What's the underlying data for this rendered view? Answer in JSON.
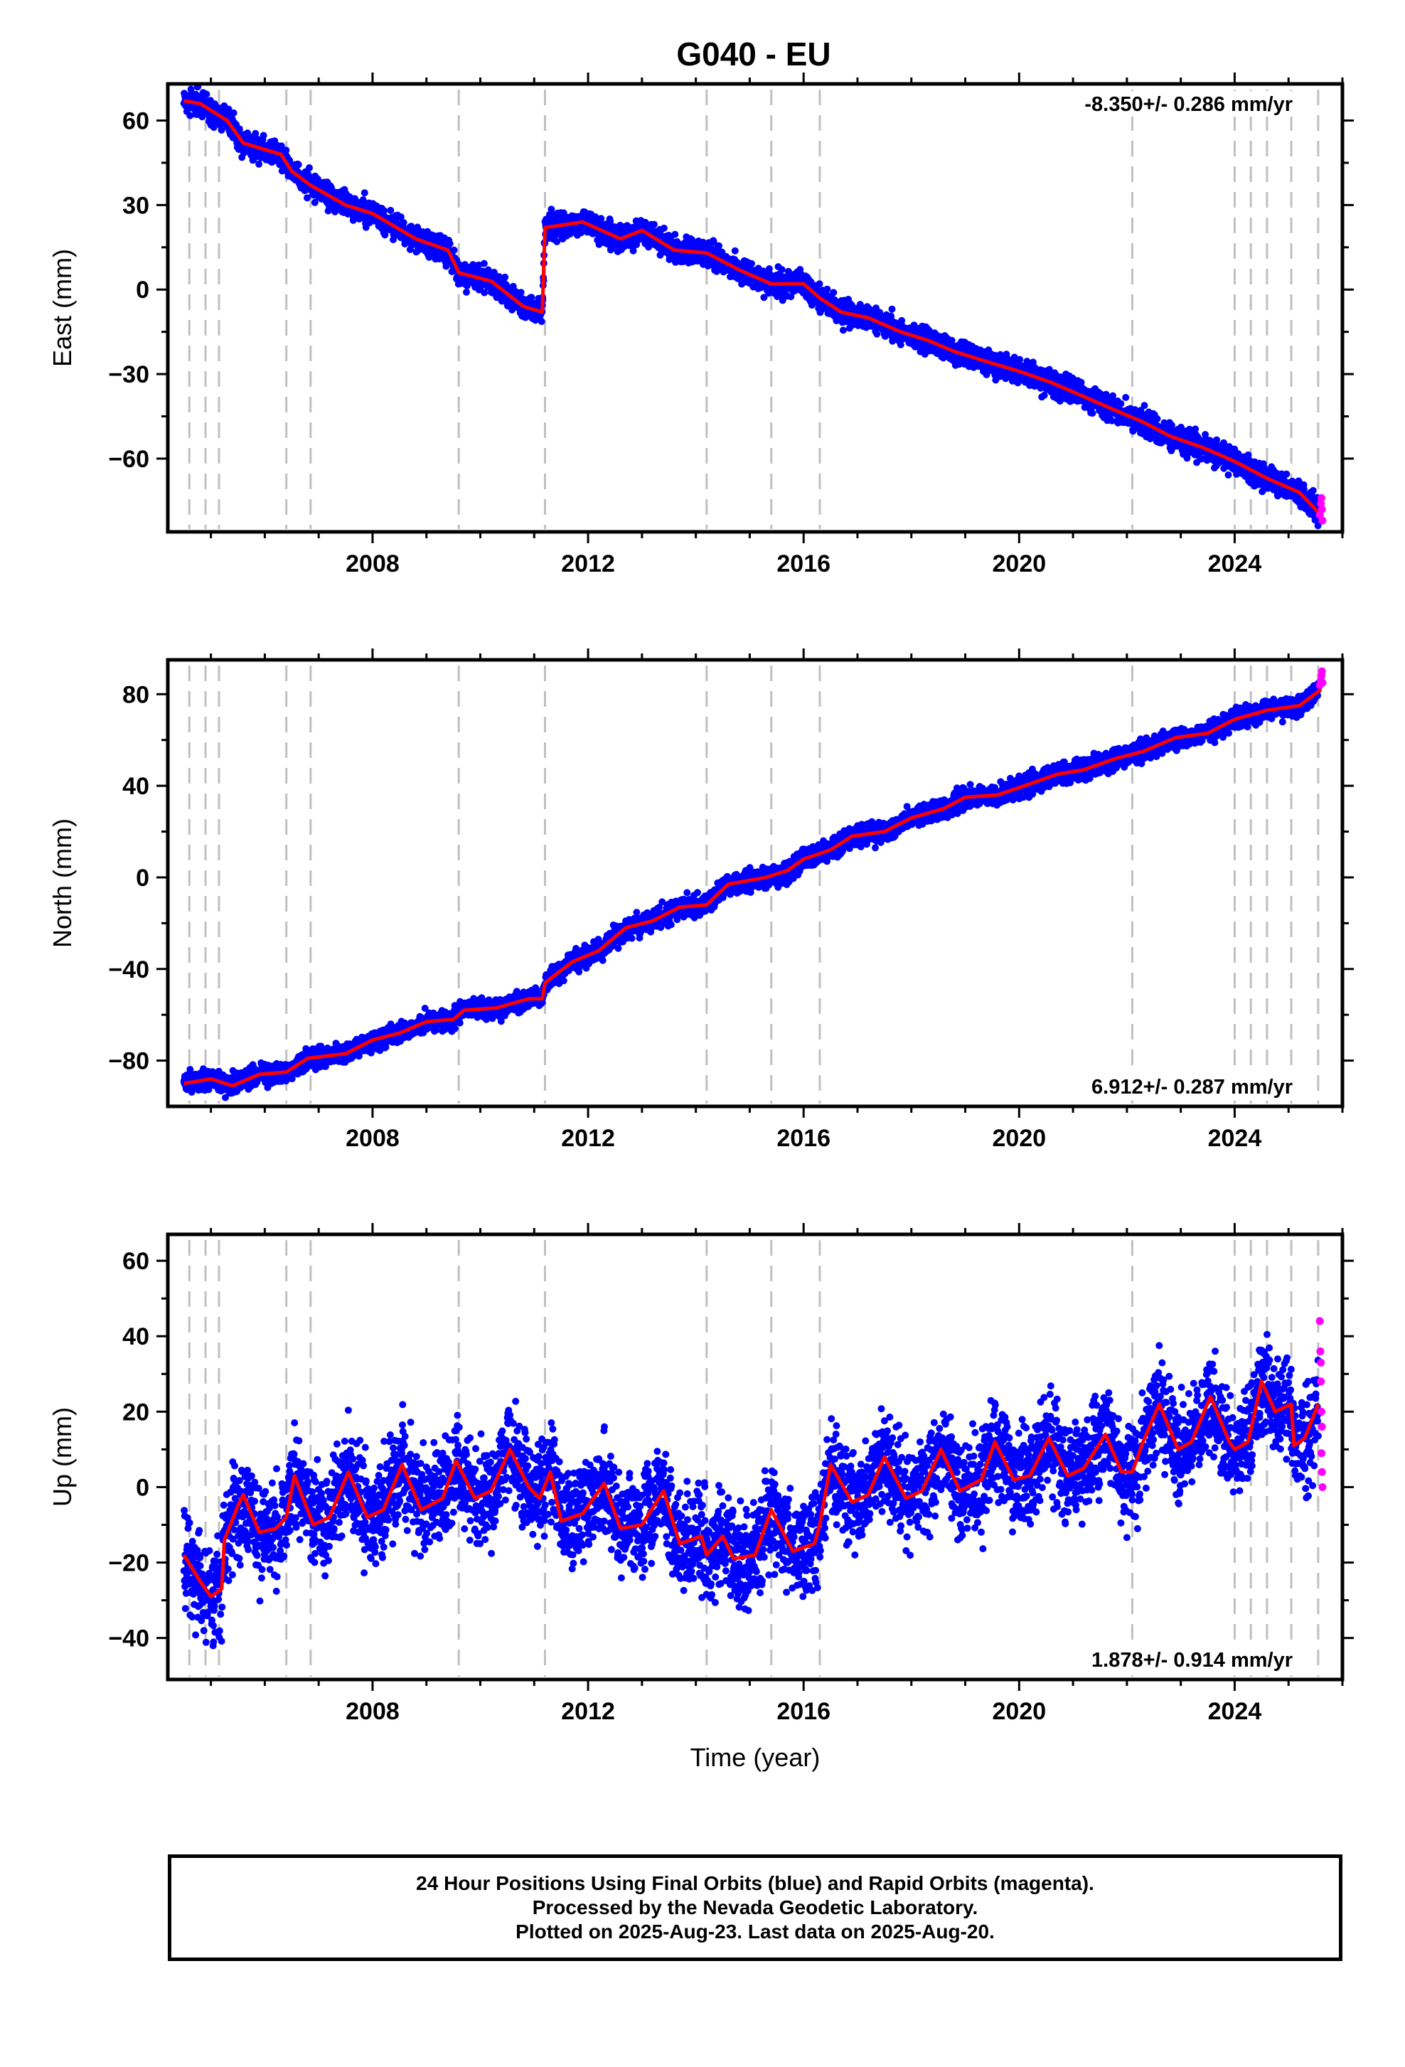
{
  "title": "G040 - EU",
  "footer": {
    "line1": "24 Hour Positions Using Final Orbits (blue) and Rapid Orbits (magenta).",
    "line2": "Processed by the Nevada Geodetic Laboratory.",
    "line3": "Plotted on 2025-Aug-23. Last data on 2025-Aug-20."
  },
  "colors": {
    "final_orbits": "#0000ff",
    "rapid_orbits": "#ff00ff",
    "model_fit": "#ff0000",
    "event_lines": "#c0c0c0"
  },
  "chart_data": [
    {
      "type": "scatter",
      "name": "east",
      "ylabel": "East (mm)",
      "rate_label": "-8.350+/- 0.286 mm/yr",
      "rate_position": "top-right",
      "xlim": [
        2004.2,
        2026.0
      ],
      "ylim": [
        -86,
        73
      ],
      "x_ticks": [
        2008,
        2012,
        2016,
        2020,
        2024
      ],
      "y_ticks": [
        -60,
        -30,
        0,
        30,
        60
      ],
      "grid": false,
      "event_lines": [
        2004.6,
        2004.9,
        2005.15,
        2006.4,
        2006.85,
        2009.6,
        2011.2,
        2014.2,
        2015.4,
        2016.3,
        2022.1,
        2024.0,
        2024.3,
        2024.6,
        2025.05,
        2025.55
      ],
      "trend": [
        [
          2004.5,
          67
        ],
        [
          2004.8,
          66
        ],
        [
          2005.3,
          60
        ],
        [
          2005.6,
          52
        ],
        [
          2006.3,
          48
        ],
        [
          2006.5,
          42
        ],
        [
          2006.85,
          37
        ],
        [
          2007.5,
          30
        ],
        [
          2008.0,
          27
        ],
        [
          2008.8,
          18
        ],
        [
          2009.4,
          14
        ],
        [
          2009.6,
          6
        ],
        [
          2010.2,
          3
        ],
        [
          2010.8,
          -6
        ],
        [
          2011.15,
          -8
        ],
        [
          2011.2,
          22
        ],
        [
          2011.9,
          24
        ],
        [
          2012.6,
          18
        ],
        [
          2013.0,
          21
        ],
        [
          2013.6,
          14
        ],
        [
          2014.2,
          13
        ],
        [
          2014.8,
          7
        ],
        [
          2015.4,
          2
        ],
        [
          2016.0,
          2
        ],
        [
          2016.3,
          -3
        ],
        [
          2016.7,
          -8
        ],
        [
          2017.2,
          -10
        ],
        [
          2017.8,
          -15
        ],
        [
          2018.3,
          -18
        ],
        [
          2018.8,
          -22
        ],
        [
          2019.3,
          -25
        ],
        [
          2020.0,
          -29
        ],
        [
          2020.6,
          -33
        ],
        [
          2021.2,
          -38
        ],
        [
          2021.8,
          -43
        ],
        [
          2022.3,
          -47
        ],
        [
          2022.8,
          -52
        ],
        [
          2023.4,
          -56
        ],
        [
          2024.0,
          -61
        ],
        [
          2024.6,
          -67
        ],
        [
          2025.2,
          -72
        ],
        [
          2025.6,
          -80
        ]
      ],
      "rapid": [
        [
          2025.58,
          -80
        ],
        [
          2025.6,
          -76
        ],
        [
          2025.62,
          -78
        ],
        [
          2025.63,
          -82
        ],
        [
          2025.61,
          -74
        ]
      ]
    },
    {
      "type": "scatter",
      "name": "north",
      "ylabel": "North (mm)",
      "rate_label": "6.912+/- 0.287 mm/yr",
      "rate_position": "bottom-right",
      "xlim": [
        2004.2,
        2026.0
      ],
      "ylim": [
        -100,
        95
      ],
      "x_ticks": [
        2008,
        2012,
        2016,
        2020,
        2024
      ],
      "y_ticks": [
        -80,
        -40,
        0,
        40,
        80
      ],
      "grid": false,
      "event_lines": [
        2004.6,
        2004.9,
        2005.15,
        2006.4,
        2006.85,
        2009.6,
        2011.2,
        2014.2,
        2015.4,
        2016.3,
        2022.1,
        2024.0,
        2024.3,
        2024.6,
        2025.05,
        2025.55
      ],
      "trend": [
        [
          2004.5,
          -90
        ],
        [
          2005.0,
          -88
        ],
        [
          2005.4,
          -91
        ],
        [
          2005.9,
          -86
        ],
        [
          2006.4,
          -85
        ],
        [
          2006.8,
          -79
        ],
        [
          2007.5,
          -77
        ],
        [
          2008.0,
          -71
        ],
        [
          2008.5,
          -68
        ],
        [
          2009.0,
          -63
        ],
        [
          2009.5,
          -62
        ],
        [
          2009.7,
          -58
        ],
        [
          2010.3,
          -57
        ],
        [
          2010.9,
          -53
        ],
        [
          2011.15,
          -53
        ],
        [
          2011.2,
          -46
        ],
        [
          2011.7,
          -37
        ],
        [
          2012.2,
          -32
        ],
        [
          2012.7,
          -22
        ],
        [
          2013.2,
          -19
        ],
        [
          2013.7,
          -13
        ],
        [
          2014.2,
          -12
        ],
        [
          2014.6,
          -3
        ],
        [
          2015.3,
          0
        ],
        [
          2015.7,
          3
        ],
        [
          2016.0,
          8
        ],
        [
          2016.5,
          12
        ],
        [
          2016.9,
          18
        ],
        [
          2017.5,
          20
        ],
        [
          2018.0,
          26
        ],
        [
          2018.6,
          30
        ],
        [
          2019.0,
          35
        ],
        [
          2019.6,
          36
        ],
        [
          2020.1,
          40
        ],
        [
          2020.7,
          45
        ],
        [
          2021.2,
          47
        ],
        [
          2021.8,
          52
        ],
        [
          2022.3,
          55
        ],
        [
          2022.9,
          61
        ],
        [
          2023.5,
          63
        ],
        [
          2024.0,
          69
        ],
        [
          2024.6,
          73
        ],
        [
          2025.2,
          75
        ],
        [
          2025.6,
          82
        ]
      ],
      "rapid": [
        [
          2025.58,
          84
        ],
        [
          2025.6,
          86
        ],
        [
          2025.62,
          90
        ],
        [
          2025.61,
          88
        ],
        [
          2025.63,
          85
        ]
      ]
    },
    {
      "type": "scatter",
      "name": "up",
      "ylabel": "Up (mm)",
      "xlabel": "Time (year)",
      "rate_label": "1.878+/- 0.914 mm/yr",
      "rate_position": "bottom-right",
      "xlim": [
        2004.2,
        2026.0
      ],
      "ylim": [
        -51,
        67
      ],
      "x_ticks": [
        2008,
        2012,
        2016,
        2020,
        2024
      ],
      "y_ticks": [
        -40,
        -20,
        0,
        20,
        40,
        60
      ],
      "grid": false,
      "event_lines": [
        2004.6,
        2004.9,
        2005.15,
        2006.4,
        2006.85,
        2009.6,
        2011.2,
        2014.2,
        2015.4,
        2016.3,
        2022.1,
        2024.0,
        2024.3,
        2024.6,
        2025.05,
        2025.55
      ],
      "trend": [
        [
          2004.5,
          -18
        ],
        [
          2004.8,
          -25
        ],
        [
          2005.0,
          -29
        ],
        [
          2005.2,
          -27
        ],
        [
          2005.25,
          -14
        ],
        [
          2005.5,
          -5
        ],
        [
          2005.6,
          -2
        ],
        [
          2005.9,
          -12
        ],
        [
          2006.2,
          -11
        ],
        [
          2006.4,
          -8
        ],
        [
          2006.55,
          3
        ],
        [
          2006.9,
          -10
        ],
        [
          2007.2,
          -8
        ],
        [
          2007.55,
          4
        ],
        [
          2007.9,
          -8
        ],
        [
          2008.2,
          -6
        ],
        [
          2008.55,
          6
        ],
        [
          2008.9,
          -6
        ],
        [
          2009.3,
          -3
        ],
        [
          2009.55,
          7
        ],
        [
          2009.9,
          -3
        ],
        [
          2010.2,
          -1
        ],
        [
          2010.55,
          10
        ],
        [
          2010.9,
          0
        ],
        [
          2011.1,
          -3
        ],
        [
          2011.3,
          4
        ],
        [
          2011.5,
          -9
        ],
        [
          2011.9,
          -7
        ],
        [
          2012.3,
          1
        ],
        [
          2012.6,
          -11
        ],
        [
          2013.0,
          -10
        ],
        [
          2013.4,
          -1
        ],
        [
          2013.7,
          -15
        ],
        [
          2014.1,
          -13
        ],
        [
          2014.2,
          -18
        ],
        [
          2014.5,
          -13
        ],
        [
          2014.7,
          -19
        ],
        [
          2015.1,
          -18
        ],
        [
          2015.4,
          -6
        ],
        [
          2015.8,
          -17
        ],
        [
          2016.2,
          -15
        ],
        [
          2016.3,
          -10
        ],
        [
          2016.5,
          6
        ],
        [
          2016.9,
          -4
        ],
        [
          2017.2,
          -2
        ],
        [
          2017.5,
          8
        ],
        [
          2017.9,
          -3
        ],
        [
          2018.2,
          -1
        ],
        [
          2018.55,
          10
        ],
        [
          2018.9,
          -1
        ],
        [
          2019.3,
          2
        ],
        [
          2019.55,
          12
        ],
        [
          2019.9,
          2
        ],
        [
          2020.2,
          3
        ],
        [
          2020.55,
          13
        ],
        [
          2020.9,
          3
        ],
        [
          2021.2,
          5
        ],
        [
          2021.6,
          14
        ],
        [
          2021.9,
          4
        ],
        [
          2022.1,
          4
        ],
        [
          2022.3,
          12
        ],
        [
          2022.6,
          22
        ],
        [
          2022.95,
          10
        ],
        [
          2023.2,
          12
        ],
        [
          2023.55,
          24
        ],
        [
          2023.9,
          12
        ],
        [
          2024.0,
          10
        ],
        [
          2024.25,
          12
        ],
        [
          2024.5,
          28
        ],
        [
          2024.75,
          20
        ],
        [
          2025.05,
          22
        ],
        [
          2025.1,
          11
        ],
        [
          2025.3,
          13
        ],
        [
          2025.55,
          22
        ]
      ],
      "rapid": [
        [
          2025.58,
          44
        ],
        [
          2025.59,
          36
        ],
        [
          2025.6,
          33
        ],
        [
          2025.6,
          28
        ],
        [
          2025.61,
          20
        ],
        [
          2025.62,
          16
        ],
        [
          2025.61,
          9
        ],
        [
          2025.63,
          0
        ],
        [
          2025.62,
          4
        ]
      ]
    }
  ]
}
